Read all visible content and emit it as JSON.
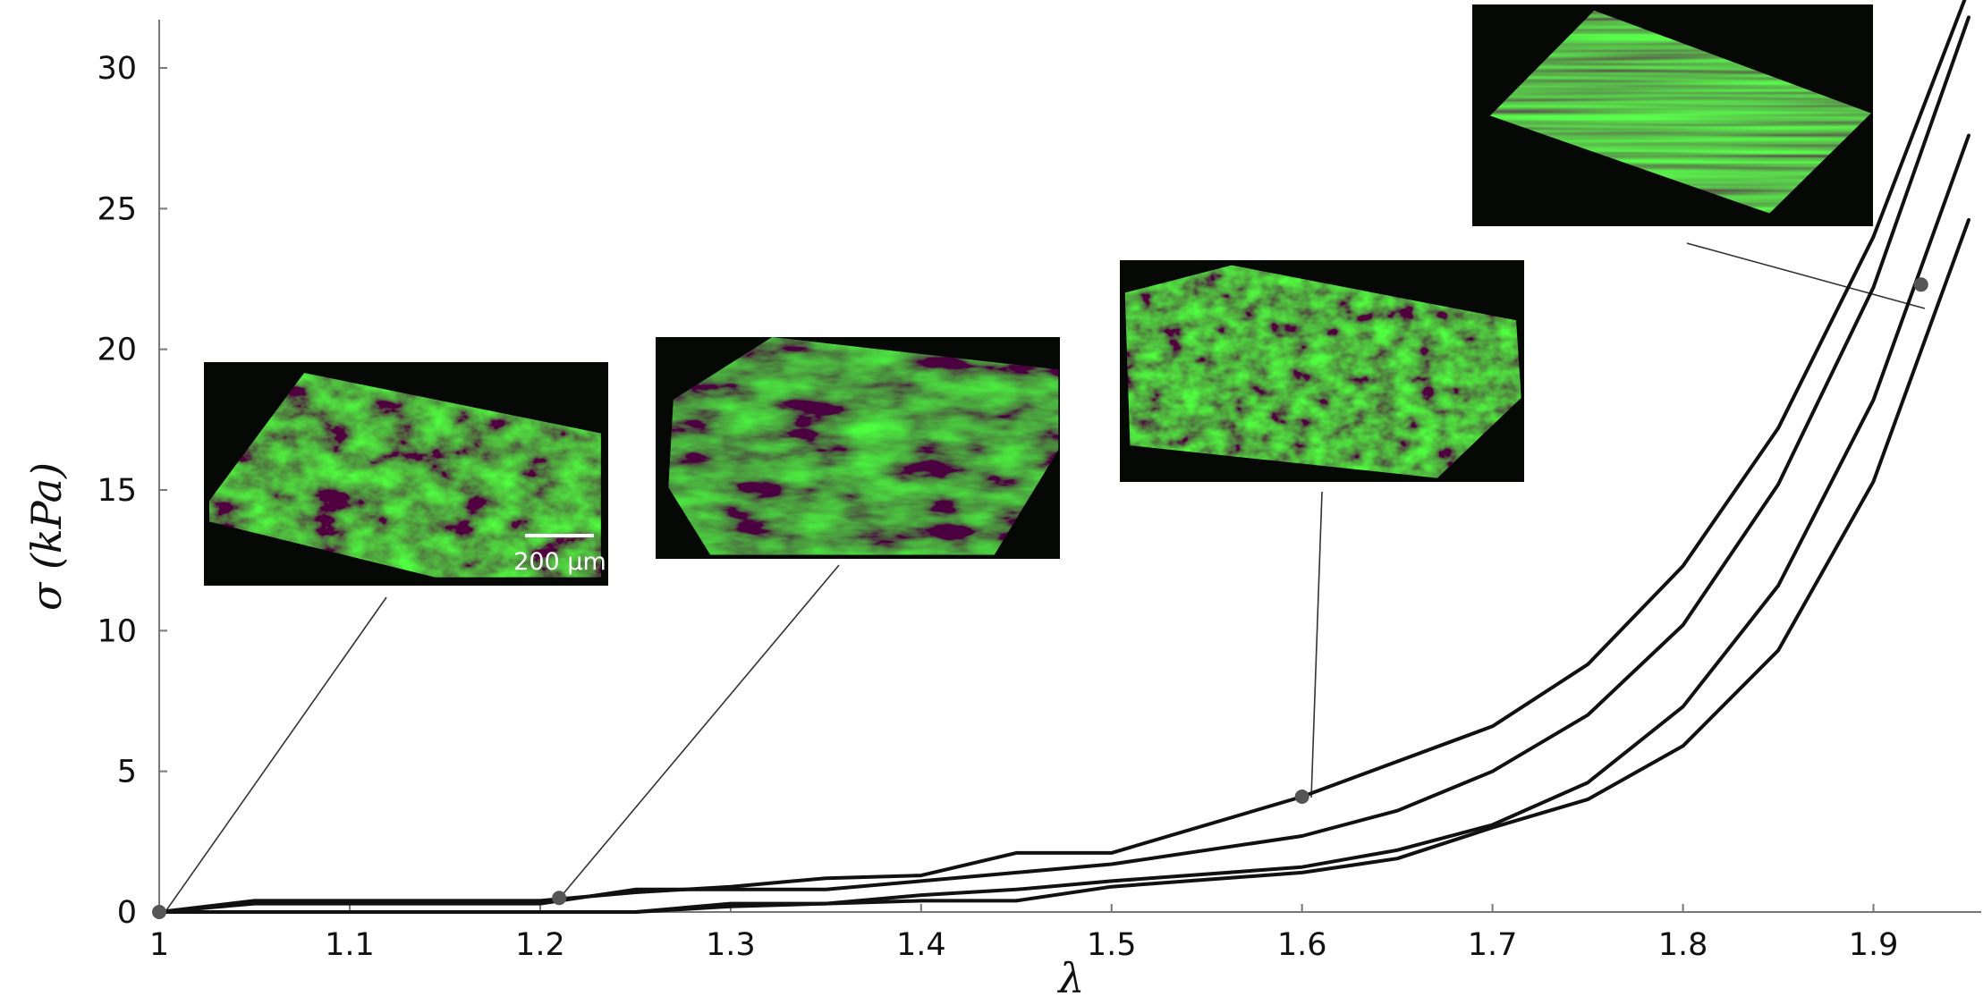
{
  "chart_data": {
    "type": "line",
    "title": "",
    "xlabel": "λ",
    "ylabel": "σ (kPa)",
    "xlim": [
      1.0,
      1.95
    ],
    "ylim": [
      0,
      33
    ],
    "x_ticks": [
      "1",
      "1.1",
      "1.2",
      "1.3",
      "1.4",
      "1.5",
      "1.6",
      "1.7",
      "1.8",
      "1.9"
    ],
    "y_ticks": [
      "0",
      "5",
      "10",
      "15",
      "20",
      "25",
      "30"
    ],
    "grid": false,
    "legend": "none",
    "series_color": "#111111",
    "series": [
      {
        "x": [
          1.0,
          1.05,
          1.1,
          1.2,
          1.25,
          1.3,
          1.35,
          1.4,
          1.45,
          1.5,
          1.6,
          1.7,
          1.75,
          1.8,
          1.85,
          1.9,
          1.95
        ],
        "y": [
          0.0,
          0.4,
          0.4,
          0.4,
          0.7,
          0.9,
          1.2,
          1.3,
          2.1,
          2.1,
          4.1,
          6.6,
          8.8,
          12.3,
          17.2,
          24.0,
          32.8
        ]
      },
      {
        "x": [
          1.0,
          1.05,
          1.1,
          1.2,
          1.25,
          1.3,
          1.35,
          1.4,
          1.45,
          1.5,
          1.6,
          1.65,
          1.7,
          1.75,
          1.8,
          1.85,
          1.9,
          1.95
        ],
        "y": [
          0.0,
          0.3,
          0.3,
          0.3,
          0.8,
          0.8,
          0.8,
          1.1,
          1.4,
          1.7,
          2.7,
          3.6,
          5.0,
          7.0,
          10.2,
          15.2,
          22.2,
          31.8
        ]
      },
      {
        "x": [
          1.0,
          1.25,
          1.3,
          1.35,
          1.4,
          1.45,
          1.5,
          1.6,
          1.65,
          1.7,
          1.75,
          1.8,
          1.85,
          1.9,
          1.95
        ],
        "y": [
          0.0,
          0.0,
          0.3,
          0.3,
          0.6,
          0.8,
          1.1,
          1.6,
          2.2,
          3.1,
          4.6,
          7.3,
          11.6,
          18.2,
          27.6
        ]
      },
      {
        "x": [
          1.0,
          1.25,
          1.3,
          1.35,
          1.4,
          1.45,
          1.5,
          1.6,
          1.65,
          1.7,
          1.75,
          1.8,
          1.85,
          1.9,
          1.95
        ],
        "y": [
          0.0,
          0.0,
          0.2,
          0.3,
          0.4,
          0.4,
          0.9,
          1.4,
          1.9,
          3.0,
          4.0,
          5.9,
          9.3,
          15.3,
          24.6
        ]
      }
    ],
    "annotations": [
      {
        "x": 1.0,
        "y": 0.0,
        "label": "200 µm"
      },
      {
        "x": 1.21,
        "y": 0.5
      },
      {
        "x": 1.6,
        "y": 4.1
      },
      {
        "x": 1.925,
        "y": 22.3
      }
    ]
  },
  "colors": {
    "inset_background": "#050805",
    "tissue_green": "#2fcf2f",
    "marker": "#555555"
  }
}
